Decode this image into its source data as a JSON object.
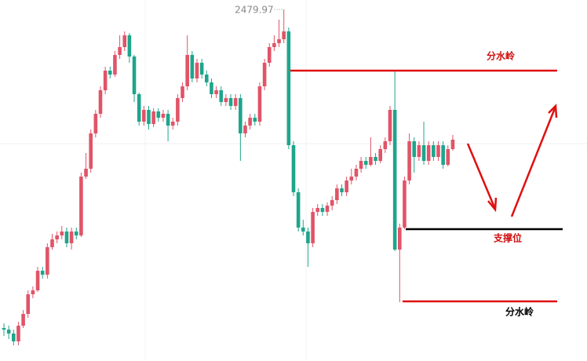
{
  "chart_data": {
    "type": "candlestick",
    "up_color": "#e05468",
    "down_color": "#1ea58c",
    "ylim": [
      2032,
      2492
    ],
    "open": [
      2074,
      2072,
      2067,
      2057,
      2077,
      2092,
      2117,
      2122,
      2147,
      2142,
      2177,
      2187,
      2192,
      2197,
      2182,
      2197,
      2192,
      2267,
      2277,
      2322,
      2347,
      2377,
      2402,
      2397,
      2422,
      2432,
      2447,
      2420,
      2372,
      2337,
      2352,
      2334,
      2350,
      2342,
      2347,
      2332,
      2337,
      2367,
      2382,
      2422,
      2392,
      2412,
      2397,
      2387,
      2372,
      2377,
      2362,
      2367,
      2357,
      2367,
      2322,
      2332,
      2342,
      2337,
      2382,
      2412,
      2432,
      2437,
      2442,
      2452,
      2307,
      2247,
      2202,
      2197,
      2182,
      2222,
      2227,
      2222,
      2230,
      2237,
      2252,
      2247,
      2262,
      2267,
      2277,
      2287,
      2282,
      2292,
      2287,
      2302,
      2312,
      2352,
      2174,
      2202,
      2262,
      2312,
      2292,
      2307,
      2287,
      2307,
      2292,
      2307,
      2282,
      2302
    ],
    "high": [
      2080,
      2077,
      2072,
      2082,
      2097,
      2122,
      2127,
      2152,
      2152,
      2182,
      2194,
      2197,
      2204,
      2202,
      2202,
      2202,
      2272,
      2297,
      2327,
      2352,
      2382,
      2407,
      2407,
      2427,
      2447,
      2452,
      2450,
      2422,
      2374,
      2357,
      2357,
      2354,
      2354,
      2352,
      2352,
      2342,
      2372,
      2387,
      2447,
      2427,
      2417,
      2417,
      2402,
      2392,
      2382,
      2382,
      2372,
      2372,
      2372,
      2372,
      2337,
      2347,
      2347,
      2387,
      2417,
      2437,
      2447,
      2467,
      2479.97,
      2457,
      2312,
      2252,
      2212,
      2202,
      2227,
      2232,
      2232,
      2234,
      2242,
      2257,
      2257,
      2267,
      2277,
      2282,
      2292,
      2292,
      2317,
      2297,
      2307,
      2317,
      2357,
      2402,
      2207,
      2267,
      2322,
      2317,
      2312,
      2337,
      2312,
      2312,
      2312,
      2312,
      2307,
      2320
    ],
    "low": [
      2064,
      2060,
      2052,
      2052,
      2074,
      2087,
      2112,
      2120,
      2137,
      2137,
      2174,
      2182,
      2187,
      2177,
      2174,
      2187,
      2190,
      2264,
      2272,
      2317,
      2342,
      2372,
      2392,
      2394,
      2417,
      2427,
      2412,
      2362,
      2332,
      2332,
      2327,
      2330,
      2337,
      2337,
      2312,
      2327,
      2332,
      2362,
      2377,
      2387,
      2387,
      2392,
      2382,
      2367,
      2367,
      2357,
      2357,
      2352,
      2352,
      2287,
      2317,
      2327,
      2332,
      2332,
      2377,
      2407,
      2427,
      2432,
      2437,
      2302,
      2242,
      2197,
      2192,
      2152,
      2177,
      2217,
      2217,
      2217,
      2224,
      2232,
      2242,
      2242,
      2257,
      2262,
      2272,
      2277,
      2280,
      2282,
      2284,
      2297,
      2307,
      2172,
      2107,
      2200,
      2257,
      2272,
      2287,
      2282,
      2282,
      2287,
      2287,
      2277,
      2280,
      2300
    ],
    "close": [
      2072,
      2067,
      2057,
      2077,
      2092,
      2117,
      2122,
      2147,
      2142,
      2177,
      2187,
      2192,
      2197,
      2182,
      2197,
      2192,
      2267,
      2277,
      2322,
      2347,
      2377,
      2402,
      2397,
      2422,
      2432,
      2447,
      2420,
      2372,
      2337,
      2352,
      2334,
      2350,
      2342,
      2347,
      2332,
      2337,
      2367,
      2382,
      2422,
      2392,
      2412,
      2397,
      2387,
      2372,
      2377,
      2362,
      2367,
      2357,
      2367,
      2322,
      2332,
      2342,
      2337,
      2382,
      2412,
      2432,
      2437,
      2442,
      2452,
      2307,
      2247,
      2202,
      2197,
      2182,
      2222,
      2227,
      2222,
      2230,
      2237,
      2252,
      2247,
      2262,
      2267,
      2277,
      2287,
      2282,
      2292,
      2287,
      2302,
      2312,
      2352,
      2174,
      2202,
      2262,
      2312,
      2292,
      2307,
      2287,
      2307,
      2292,
      2307,
      2282,
      2302,
      2314
    ],
    "max_index": 58,
    "annotations": [
      "分水岭",
      "支撑位",
      "分水岭"
    ]
  }
}
